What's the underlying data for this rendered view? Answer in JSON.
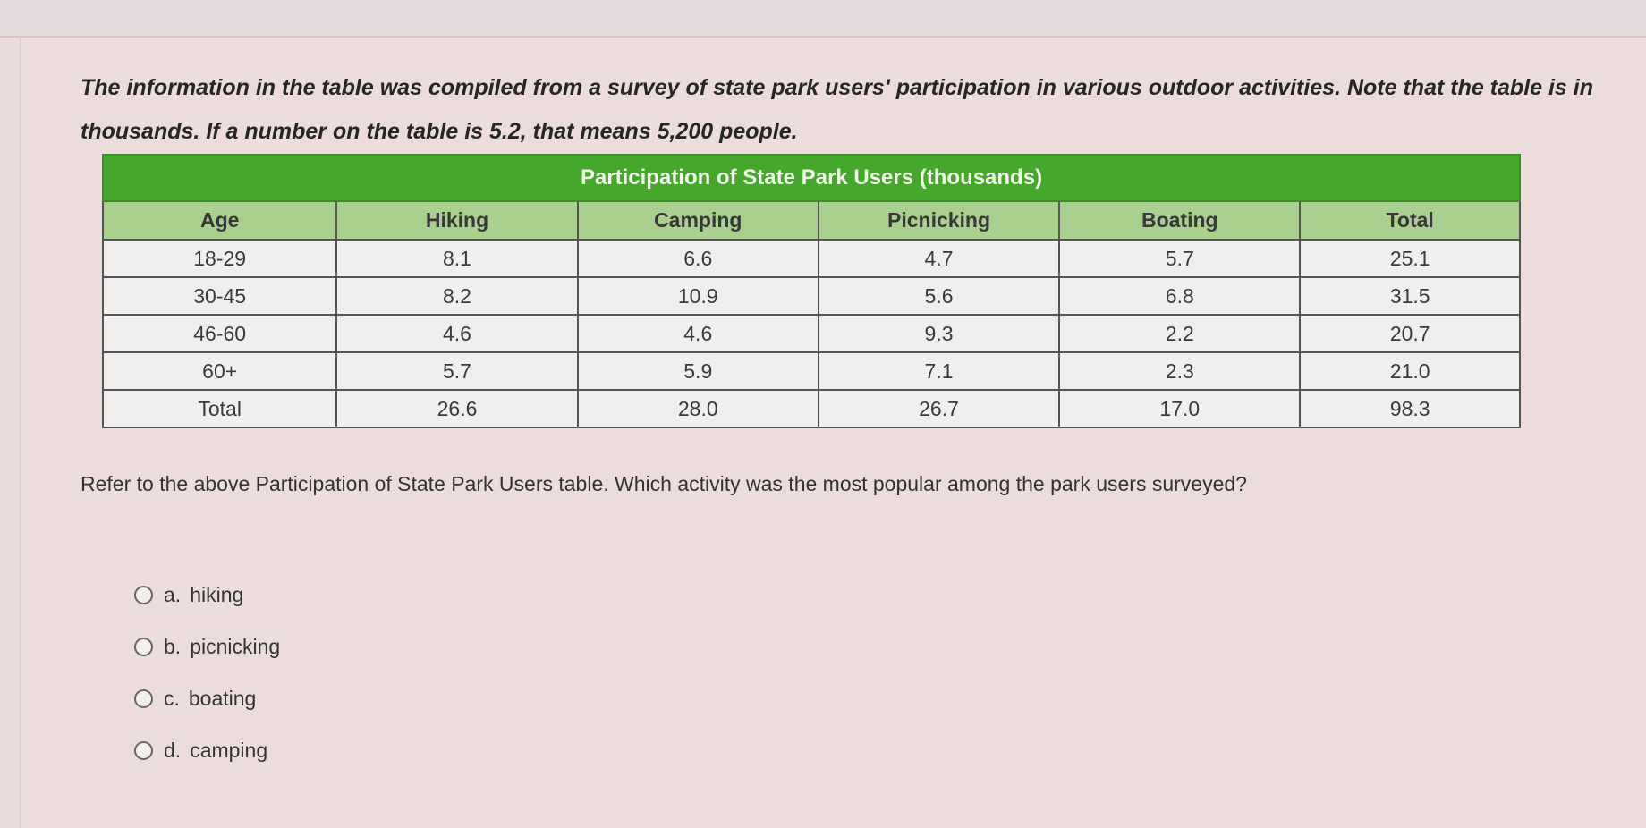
{
  "intro": "The information in the table was compiled from a survey of state park users' participation in various outdoor activities. Note that the table is in thousands. If a number on the table is 5.2, that means 5,200 people.",
  "table": {
    "title": "Participation of State Park Users (thousands)",
    "headers": [
      "Age",
      "Hiking",
      "Camping",
      "Picnicking",
      "Boating",
      "Total"
    ],
    "rows": [
      [
        "18-29",
        "8.1",
        "6.6",
        "4.7",
        "5.7",
        "25.1"
      ],
      [
        "30-45",
        "8.2",
        "10.9",
        "5.6",
        "6.8",
        "31.5"
      ],
      [
        "46-60",
        "4.6",
        "4.6",
        "9.3",
        "2.2",
        "20.7"
      ],
      [
        "60+",
        "5.7",
        "5.9",
        "7.1",
        "2.3",
        "21.0"
      ],
      [
        "Total",
        "26.6",
        "28.0",
        "26.7",
        "17.0",
        "98.3"
      ]
    ],
    "colors": {
      "title_bg": "#45a82c",
      "header_bg": "#a9d08f"
    }
  },
  "question": "Refer to the above Participation of State Park Users table. Which activity was the most popular among the park users surveyed?",
  "options": [
    {
      "letter": "a.",
      "label": "hiking"
    },
    {
      "letter": "b.",
      "label": "picnicking"
    },
    {
      "letter": "c.",
      "label": "boating"
    },
    {
      "letter": "d.",
      "label": "camping"
    }
  ]
}
